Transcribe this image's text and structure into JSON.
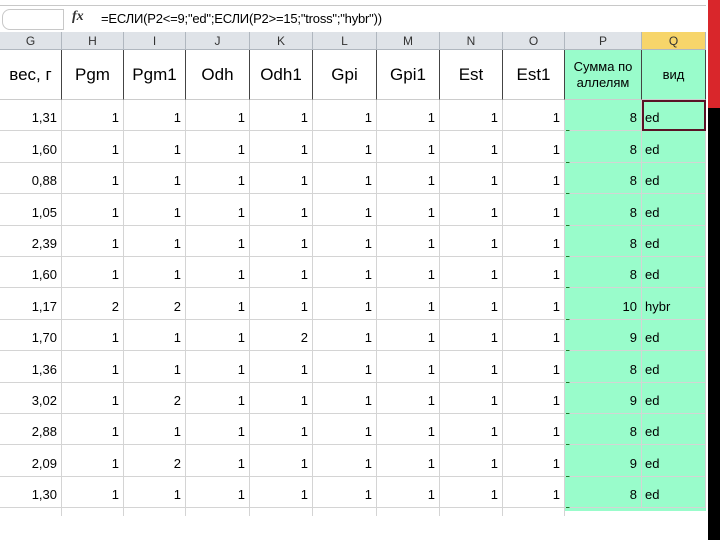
{
  "formula_bar": {
    "fx_label": "fx",
    "formula": "=ЕСЛИ(P2<=9;\"ed\";ЕСЛИ(P2>=15;\"tross\";\"hybr\"))"
  },
  "columns": [
    {
      "letter": "G",
      "header": "вес, г"
    },
    {
      "letter": "H",
      "header": "Pgm"
    },
    {
      "letter": "I",
      "header": "Pgm1"
    },
    {
      "letter": "J",
      "header": "Odh"
    },
    {
      "letter": "K",
      "header": "Odh1"
    },
    {
      "letter": "L",
      "header": "Gpi"
    },
    {
      "letter": "M",
      "header": "Gpi1"
    },
    {
      "letter": "N",
      "header": "Est"
    },
    {
      "letter": "O",
      "header": "Est1"
    },
    {
      "letter": "P",
      "header": "Сумма по аллелям"
    },
    {
      "letter": "Q",
      "header": "вид"
    }
  ],
  "rows": [
    [
      "1,31",
      "1",
      "1",
      "1",
      "1",
      "1",
      "1",
      "1",
      "1",
      "8",
      "ed"
    ],
    [
      "1,60",
      "1",
      "1",
      "1",
      "1",
      "1",
      "1",
      "1",
      "1",
      "8",
      "ed"
    ],
    [
      "0,88",
      "1",
      "1",
      "1",
      "1",
      "1",
      "1",
      "1",
      "1",
      "8",
      "ed"
    ],
    [
      "1,05",
      "1",
      "1",
      "1",
      "1",
      "1",
      "1",
      "1",
      "1",
      "8",
      "ed"
    ],
    [
      "2,39",
      "1",
      "1",
      "1",
      "1",
      "1",
      "1",
      "1",
      "1",
      "8",
      "ed"
    ],
    [
      "1,60",
      "1",
      "1",
      "1",
      "1",
      "1",
      "1",
      "1",
      "1",
      "8",
      "ed"
    ],
    [
      "1,17",
      "2",
      "2",
      "1",
      "1",
      "1",
      "1",
      "1",
      "1",
      "10",
      "hybr"
    ],
    [
      "1,70",
      "1",
      "1",
      "1",
      "2",
      "1",
      "1",
      "1",
      "1",
      "9",
      "ed"
    ],
    [
      "1,36",
      "1",
      "1",
      "1",
      "1",
      "1",
      "1",
      "1",
      "1",
      "8",
      "ed"
    ],
    [
      "3,02",
      "1",
      "2",
      "1",
      "1",
      "1",
      "1",
      "1",
      "1",
      "9",
      "ed"
    ],
    [
      "2,88",
      "1",
      "1",
      "1",
      "1",
      "1",
      "1",
      "1",
      "1",
      "8",
      "ed"
    ],
    [
      "2,09",
      "1",
      "2",
      "1",
      "1",
      "1",
      "1",
      "1",
      "1",
      "9",
      "ed"
    ],
    [
      "1,30",
      "1",
      "1",
      "1",
      "1",
      "1",
      "1",
      "1",
      "1",
      "8",
      "ed"
    ]
  ],
  "selected_cell": "Q2",
  "colors": {
    "highlight_fill": "#99fccb",
    "selected_column_header": "#f7d56a",
    "selection_border": "#5a1226"
  }
}
